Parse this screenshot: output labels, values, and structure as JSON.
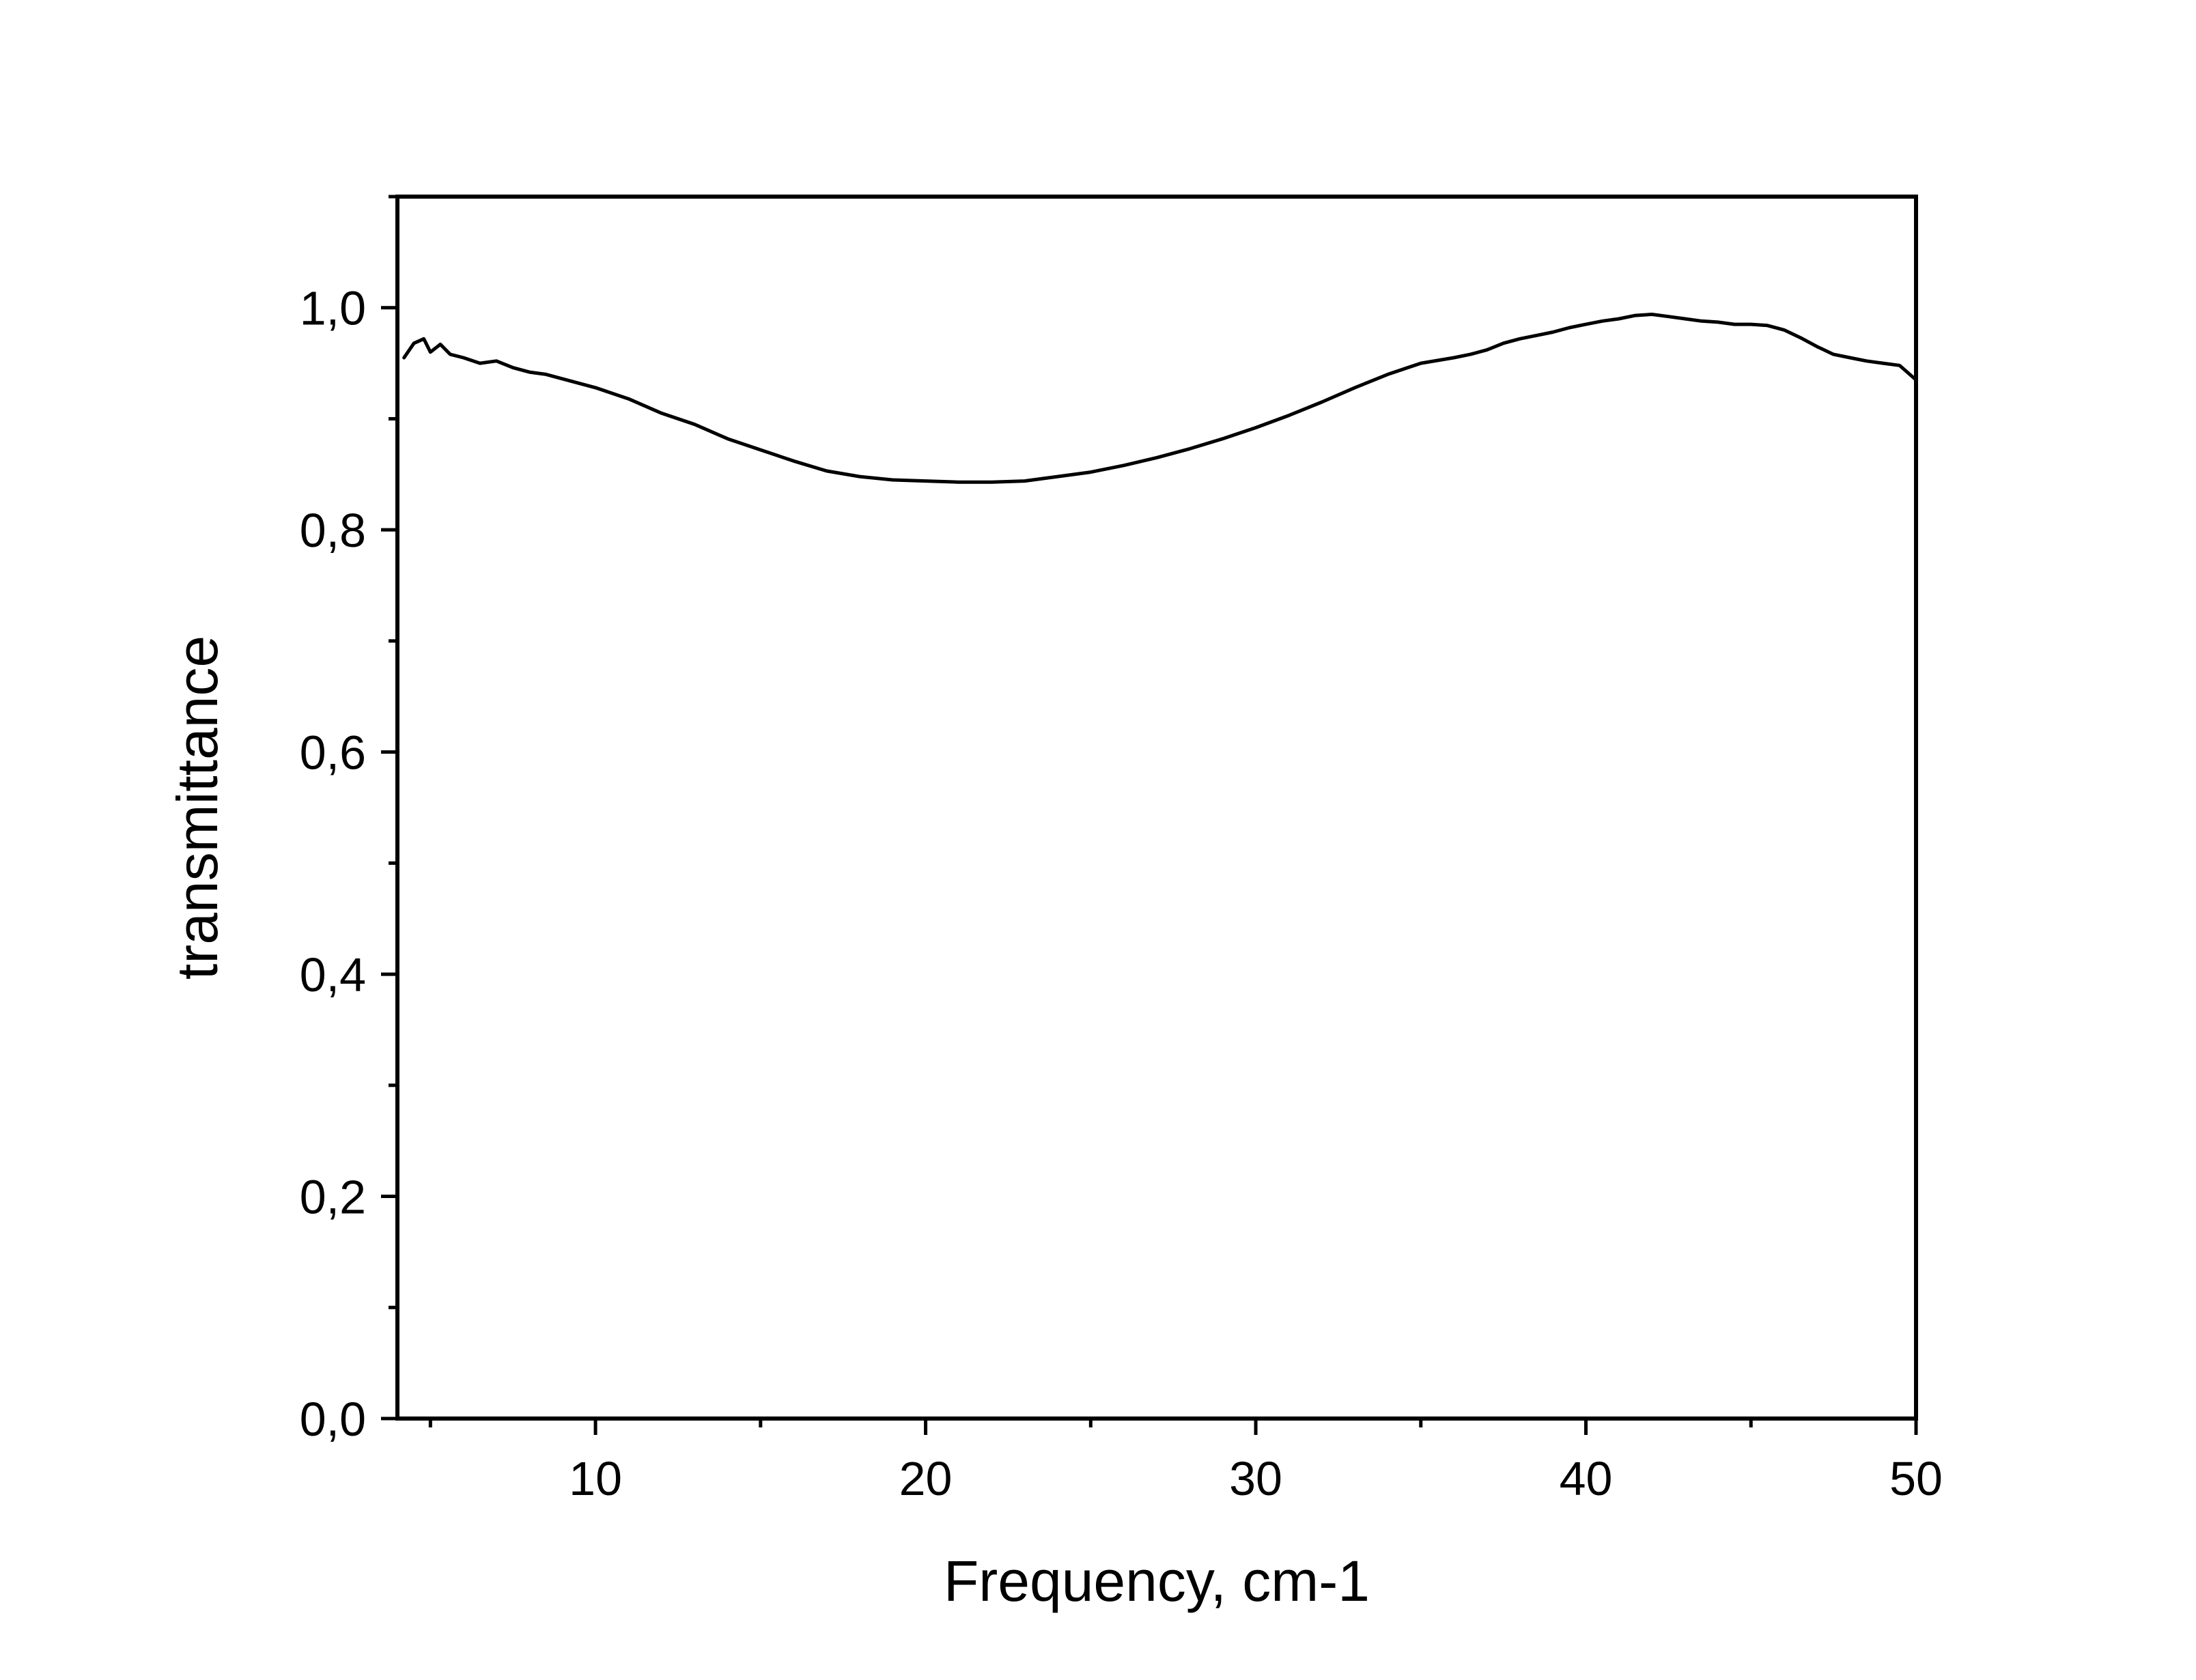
{
  "chart_data": {
    "type": "line",
    "title": "",
    "xlabel": "Frequency, cm-1",
    "ylabel": "transmittance",
    "xlim": [
      4,
      50
    ],
    "ylim": [
      0,
      1.1
    ],
    "grid": false,
    "legend": "none",
    "x_tick_labels": [
      "10",
      "20",
      "30",
      "40",
      "50"
    ],
    "x_tick_values": [
      10,
      20,
      30,
      40,
      50
    ],
    "x_minor_ticks": [
      5,
      15,
      25,
      35,
      45
    ],
    "y_tick_labels": [
      "0,0",
      "0,2",
      "0,4",
      "0,6",
      "0,8",
      "1,0"
    ],
    "y_tick_values": [
      0,
      0.2,
      0.4,
      0.6,
      0.8,
      1.0
    ],
    "y_minor_ticks": [
      0.1,
      0.3,
      0.5,
      0.7,
      0.9,
      1.1
    ],
    "colors": {
      "line": "#000000",
      "axes": "#000000",
      "background": "#ffffff"
    },
    "series": [
      {
        "x": [
          4.2,
          4.5,
          4.8,
          5.0,
          5.3,
          5.6,
          6.0,
          6.5,
          7.0,
          7.5,
          8.0,
          8.5,
          9.0,
          9.5,
          10.0,
          11.0,
          12.0,
          13.0,
          14.0,
          15.0,
          16.0,
          17.0,
          18.0,
          19.0,
          20.0,
          21.0,
          22.0,
          23.0,
          24.0,
          25.0,
          26.0,
          27.0,
          28.0,
          29.0,
          30.0,
          31.0,
          32.0,
          33.0,
          34.0,
          35.0,
          36.0,
          36.5,
          37.0,
          37.5,
          38.0,
          38.5,
          39.0,
          39.5,
          40.0,
          40.5,
          41.0,
          41.5,
          42.0,
          42.5,
          43.0,
          43.5,
          44.0,
          44.5,
          45.0,
          45.5,
          46.0,
          46.5,
          47.0,
          47.5,
          48.0,
          48.5,
          49.0,
          49.5,
          50.0
        ],
        "y": [
          0.955,
          0.968,
          0.972,
          0.96,
          0.967,
          0.958,
          0.955,
          0.95,
          0.952,
          0.946,
          0.942,
          0.94,
          0.936,
          0.932,
          0.928,
          0.918,
          0.905,
          0.895,
          0.882,
          0.872,
          0.862,
          0.853,
          0.848,
          0.845,
          0.844,
          0.843,
          0.843,
          0.844,
          0.848,
          0.852,
          0.858,
          0.865,
          0.873,
          0.882,
          0.892,
          0.903,
          0.915,
          0.928,
          0.94,
          0.95,
          0.955,
          0.958,
          0.962,
          0.968,
          0.972,
          0.975,
          0.978,
          0.982,
          0.985,
          0.988,
          0.99,
          0.993,
          0.994,
          0.992,
          0.99,
          0.988,
          0.987,
          0.985,
          0.985,
          0.984,
          0.98,
          0.973,
          0.965,
          0.958,
          0.955,
          0.952,
          0.95,
          0.948,
          0.935
        ]
      }
    ]
  }
}
